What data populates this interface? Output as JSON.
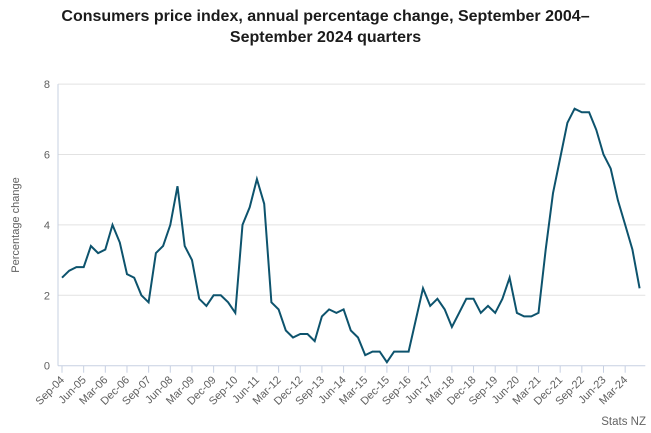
{
  "title": "Consumers price index, annual percentage change, September 2004–September 2024 quarters",
  "source": "Stats NZ",
  "colors": {
    "line": "#0d536d",
    "gridline": "#e2e2e2",
    "axis": "#c7d0e2",
    "tick_text": "#5f5f5f",
    "title_text": "#1b1b1b",
    "source_text": "#646464",
    "background": "#ffffff"
  },
  "chart_data": {
    "type": "line",
    "title": "Consumers price index, annual percentage change, September 2004–September 2024 quarters",
    "xlabel": "",
    "ylabel": "Percentage change",
    "ylim": [
      0,
      8
    ],
    "yticks": [
      0,
      2,
      4,
      6,
      8
    ],
    "grid": "horizontal",
    "legend": "none",
    "xtick_every": 3,
    "source": "Stats NZ",
    "x": [
      "Sep-04",
      "Dec-04",
      "Mar-05",
      "Jun-05",
      "Sep-05",
      "Dec-05",
      "Mar-06",
      "Jun-06",
      "Sep-06",
      "Dec-06",
      "Mar-07",
      "Jun-07",
      "Sep-07",
      "Dec-07",
      "Mar-08",
      "Jun-08",
      "Sep-08",
      "Dec-08",
      "Mar-09",
      "Jun-09",
      "Sep-09",
      "Dec-09",
      "Mar-10",
      "Jun-10",
      "Sep-10",
      "Dec-10",
      "Mar-11",
      "Jun-11",
      "Sep-11",
      "Dec-11",
      "Mar-12",
      "Jun-12",
      "Sep-12",
      "Dec-12",
      "Mar-13",
      "Jun-13",
      "Sep-13",
      "Dec-13",
      "Mar-14",
      "Jun-14",
      "Sep-14",
      "Dec-14",
      "Mar-15",
      "Jun-15",
      "Sep-15",
      "Dec-15",
      "Mar-16",
      "Jun-16",
      "Sep-16",
      "Dec-16",
      "Mar-17",
      "Jun-17",
      "Sep-17",
      "Dec-17",
      "Mar-18",
      "Jun-18",
      "Sep-18",
      "Dec-18",
      "Mar-19",
      "Jun-19",
      "Sep-19",
      "Dec-19",
      "Mar-20",
      "Jun-20",
      "Sep-20",
      "Dec-20",
      "Mar-21",
      "Jun-21",
      "Sep-21",
      "Dec-21",
      "Mar-22",
      "Jun-22",
      "Sep-22",
      "Dec-22",
      "Mar-23",
      "Jun-23",
      "Sep-23",
      "Dec-23",
      "Mar-24",
      "Jun-24",
      "Sep-24"
    ],
    "values": [
      2.5,
      2.7,
      2.8,
      2.8,
      3.4,
      3.2,
      3.3,
      4.0,
      3.5,
      2.6,
      2.5,
      2.0,
      1.8,
      3.2,
      3.4,
      4.0,
      5.1,
      3.4,
      3.0,
      1.9,
      1.7,
      2.0,
      2.0,
      1.8,
      1.5,
      4.0,
      4.5,
      5.3,
      4.6,
      1.8,
      1.6,
      1.0,
      0.8,
      0.9,
      0.9,
      0.7,
      1.4,
      1.6,
      1.5,
      1.6,
      1.0,
      0.8,
      0.3,
      0.4,
      0.4,
      0.1,
      0.4,
      0.4,
      0.4,
      1.3,
      2.2,
      1.7,
      1.9,
      1.6,
      1.1,
      1.5,
      1.9,
      1.9,
      1.5,
      1.7,
      1.5,
      1.9,
      2.5,
      1.5,
      1.4,
      1.4,
      1.5,
      3.3,
      4.9,
      5.9,
      6.9,
      7.3,
      7.2,
      7.2,
      6.7,
      6.0,
      5.6,
      4.7,
      4.0,
      3.3,
      2.2
    ]
  }
}
